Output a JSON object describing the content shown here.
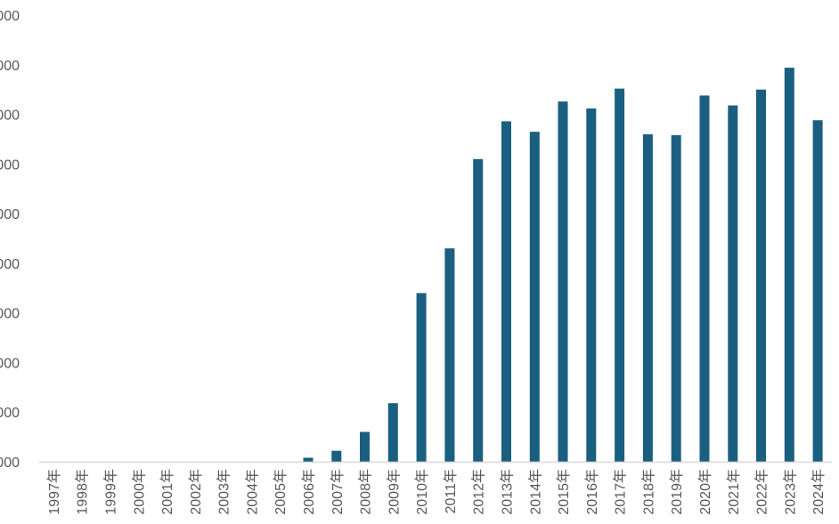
{
  "chart_data": {
    "type": "bar",
    "title": "",
    "xlabel": "",
    "ylabel": "",
    "ylim": [
      0,
      9000
    ],
    "y_tick_labels": [
      "000",
      "000",
      "000",
      "000",
      "000",
      "000",
      "000",
      "000",
      "000",
      "000"
    ],
    "categories": [
      "1997年",
      "1998年",
      "1999年",
      "2000年",
      "2001年",
      "2002年",
      "2003年",
      "2004年",
      "2005年",
      "2006年",
      "2007年",
      "2008年",
      "2009年",
      "2010年",
      "2011年",
      "2012年",
      "2013年",
      "2014年",
      "2015年",
      "2016年",
      "2017年",
      "2018年",
      "2019年",
      "2020年",
      "2021年",
      "2022年",
      "2023年",
      "2024年"
    ],
    "series": [
      {
        "values": [
          0,
          0,
          0,
          0,
          0,
          0,
          0,
          0,
          0,
          80,
          220,
          600,
          1180,
          3400,
          4300,
          6100,
          6860,
          6650,
          7260,
          7120,
          7520,
          6600,
          6580,
          7380,
          7180,
          7500,
          7940,
          6880
        ]
      }
    ],
    "colors": {
      "bar": "#1a5f7f",
      "axis": "#d9d9d9"
    },
    "grid": false,
    "legend": "none"
  }
}
